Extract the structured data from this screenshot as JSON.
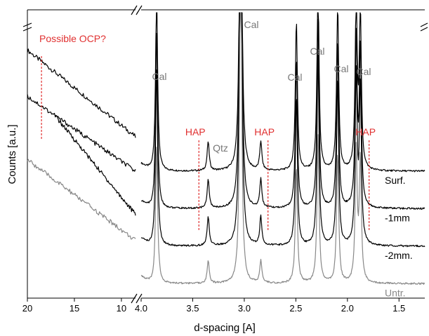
{
  "chart_data": {
    "type": "line",
    "title": "",
    "xlabel": "d-spacing [A]",
    "ylabel": "Counts [a.u.]",
    "axis_break": true,
    "panels": [
      {
        "id": "left",
        "xlim": [
          20,
          8.5
        ],
        "x_reversed": true,
        "ticks": [
          20,
          15,
          10
        ]
      },
      {
        "id": "right",
        "xlim": [
          4.0,
          1.25
        ],
        "x_reversed": true,
        "ticks": [
          4.0,
          3.5,
          3.0,
          2.5,
          2.0,
          1.5
        ]
      }
    ],
    "ylim": [
      0,
      100
    ],
    "series": [
      {
        "name": "Surf.",
        "color": "#000000",
        "left_y": [
          [
            20,
            86
          ],
          [
            8.5,
            56
          ]
        ],
        "right_baseline": 44
      },
      {
        "name": "-1mm",
        "color": "#000000",
        "left_y": [
          [
            20,
            70
          ],
          [
            8.5,
            44
          ]
        ],
        "right_baseline": 31
      },
      {
        "name": "-2mm.",
        "color": "#000000",
        "left_y": [
          [
            17,
            63
          ],
          [
            8.5,
            29
          ]
        ],
        "right_baseline": 18
      },
      {
        "name": "Untr.",
        "color": "#888888",
        "left_y": [
          [
            20,
            48
          ],
          [
            8.5,
            20
          ]
        ],
        "right_baseline": 5
      }
    ],
    "peaks": [
      {
        "d": 3.85,
        "label": "Cal",
        "height": 62
      },
      {
        "d": 3.35,
        "label": "Qtz",
        "height": 10
      },
      {
        "d": 3.035,
        "label": "Cal",
        "height": 160
      },
      {
        "d": 2.84,
        "label": "",
        "height": 10
      },
      {
        "d": 2.495,
        "label": "Cal",
        "height": 52
      },
      {
        "d": 2.285,
        "label": "Cal",
        "height": 66
      },
      {
        "d": 2.095,
        "label": "Cal",
        "height": 58
      },
      {
        "d": 1.915,
        "label": "Cal",
        "height": 58
      },
      {
        "d": 1.875,
        "label": "",
        "height": 54
      }
    ],
    "annotations": [
      {
        "panel": "left",
        "x": 18.5,
        "label": "Possible OCP?",
        "color": "#e03030"
      },
      {
        "panel": "right",
        "x": 3.44,
        "label": "HAP",
        "color": "#e03030"
      },
      {
        "panel": "right",
        "x": 2.77,
        "label": "HAP",
        "color": "#e03030"
      },
      {
        "panel": "right",
        "x": 1.79,
        "label": "HAP",
        "color": "#e03030"
      }
    ]
  }
}
